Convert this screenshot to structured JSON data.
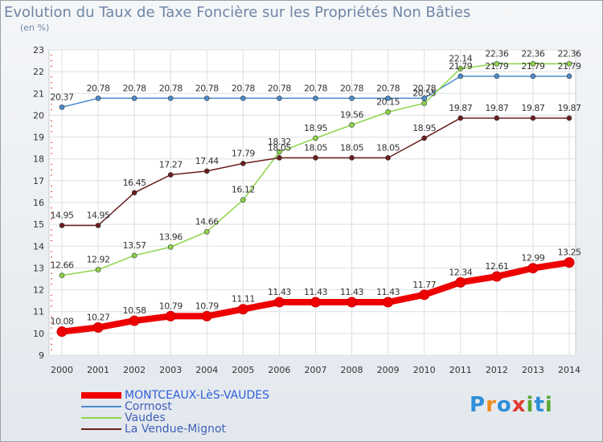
{
  "title": "Evolution du Taux de Taxe Foncière sur les Propriétés Non Bâties",
  "subtitle": "(en %)",
  "logo": {
    "letters": [
      "P",
      "r",
      "o",
      "x",
      "i",
      "t",
      "i"
    ],
    "colors": [
      "#2f8fd8",
      "#f28c1f",
      "#2f8fd8",
      "#e03b2f",
      "#5aa832",
      "#2f8fd8",
      "#5aa832"
    ]
  },
  "chart_data": {
    "type": "line",
    "title": "Evolution du Taux de Taxe Foncière sur les Propriétés Non Bâties",
    "ylabel": "(en %)",
    "xlabel": "",
    "x": [
      "2000",
      "2001",
      "2002",
      "2003",
      "2004",
      "2005",
      "2006",
      "2007",
      "2008",
      "2009",
      "2010",
      "2011",
      "2012",
      "2013",
      "2014"
    ],
    "yticks": [
      "9",
      "10",
      "11",
      "12",
      "13",
      "14",
      "15",
      "16",
      "17",
      "18",
      "19",
      "20",
      "21",
      "22",
      "23"
    ],
    "ylim": [
      9,
      23
    ],
    "grid": true,
    "legend_position": "bottom-left",
    "series": [
      {
        "name": "MONTCEAUX-LèS-VAUDES",
        "color": "#ee0000",
        "values": [
          10.08,
          10.27,
          10.58,
          10.79,
          10.79,
          11.11,
          11.43,
          11.43,
          11.43,
          11.43,
          11.77,
          12.34,
          12.61,
          12.99,
          13.25
        ],
        "labels": [
          "10.08",
          "10.27",
          "10.58",
          "10.79",
          "10.79",
          "11.11",
          "11.43",
          "11.43",
          "11.43",
          "11.43",
          "11.77",
          "12.34",
          "12.61",
          "12.99",
          "13.25"
        ]
      },
      {
        "name": "Cormost",
        "color": "#4c8ccd",
        "values": [
          20.37,
          20.78,
          20.78,
          20.78,
          20.78,
          20.78,
          20.78,
          20.78,
          20.78,
          20.78,
          20.78,
          21.79,
          21.79,
          21.79,
          21.79
        ],
        "labels": [
          "20.37",
          "20.78",
          "20.78",
          "20.78",
          "20.78",
          "20.78",
          "20.78",
          "20.78",
          "20.78",
          "20.78",
          "20.78",
          "21.79",
          "21.79",
          "21.79",
          "21.79"
        ]
      },
      {
        "name": "Vaudes",
        "color": "#8dd54a",
        "values": [
          12.66,
          12.92,
          13.57,
          13.96,
          14.66,
          16.12,
          18.32,
          18.95,
          19.56,
          20.15,
          20.55,
          22.14,
          22.36,
          22.36,
          22.36
        ],
        "labels": [
          "12.66",
          "12.92",
          "13.57",
          "13.96",
          "14.66",
          "16.12",
          "18.32",
          "18.95",
          "19.56",
          "20.15",
          "20.55",
          "22.14",
          "22.36",
          "22.36",
          "22.36"
        ]
      },
      {
        "name": "La Vendue-Mignot",
        "color": "#6b1e1e",
        "values": [
          14.95,
          14.95,
          16.45,
          17.27,
          17.44,
          17.79,
          18.05,
          18.05,
          18.05,
          18.05,
          18.95,
          19.87,
          19.87,
          19.87,
          19.87
        ],
        "labels": [
          "14.95",
          "14.95",
          "16.45",
          "17.27",
          "17.44",
          "17.79",
          "18.05",
          "18.05",
          "18.05",
          "18.05",
          "18.95",
          "19.87",
          "19.87",
          "19.87",
          "19.87"
        ]
      }
    ]
  }
}
